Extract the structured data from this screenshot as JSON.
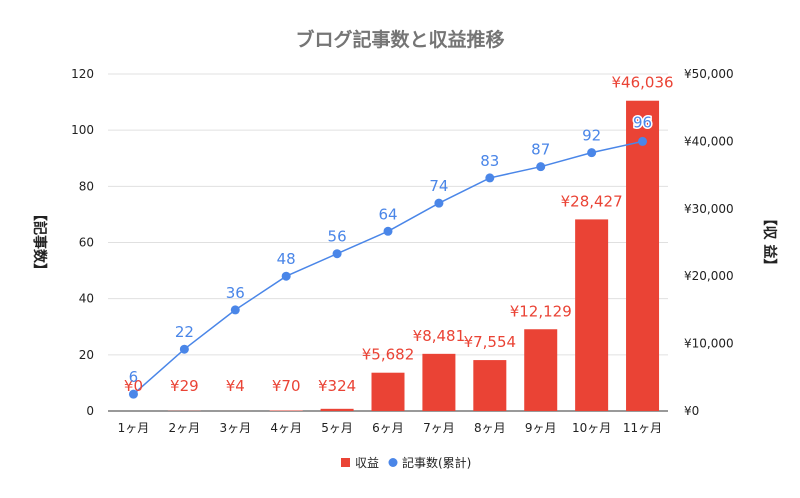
{
  "chart_data": {
    "type": "bar",
    "title": "ブログ記事数と収益推移",
    "ylabel_left": "【記事数】",
    "ylabel_right": "【収 益】",
    "categories": [
      "1ヶ月",
      "2ヶ月",
      "3ヶ月",
      "4ヶ月",
      "5ヶ月",
      "6ヶ月",
      "7ヶ月",
      "8ヶ月",
      "9ヶ月",
      "10ヶ月",
      "11ヶ月"
    ],
    "series": [
      {
        "name": "収益",
        "type": "bar",
        "axis": "right",
        "color": "#ea4335",
        "values": [
          0,
          29,
          4,
          70,
          324,
          5682,
          8481,
          7554,
          12129,
          28427,
          46036
        ],
        "labels": [
          "¥0",
          "¥29",
          "¥4",
          "¥70",
          "¥324",
          "¥5,682",
          "¥8,481",
          "¥7,554",
          "¥12,129",
          "¥28,427",
          "¥46,036"
        ]
      },
      {
        "name": "記事数(累計)",
        "type": "line",
        "axis": "left",
        "color": "#4a86e8",
        "values": [
          6,
          22,
          36,
          48,
          56,
          64,
          74,
          83,
          87,
          92,
          96
        ],
        "labels": [
          "6",
          "22",
          "36",
          "48",
          "56",
          "64",
          "74",
          "83",
          "87",
          "92",
          "96"
        ]
      }
    ],
    "y_left": {
      "ylim": [
        0,
        120
      ],
      "ticks": [
        0,
        20,
        40,
        60,
        80,
        100,
        120
      ],
      "tick_labels": [
        "0",
        "20",
        "40",
        "60",
        "80",
        "100",
        "120"
      ]
    },
    "y_right": {
      "ylim": [
        0,
        50000
      ],
      "ticks": [
        0,
        10000,
        20000,
        30000,
        40000,
        50000
      ],
      "tick_labels": [
        "¥0",
        "¥10,000",
        "¥20,000",
        "¥30,000",
        "¥40,000",
        "¥50,000"
      ]
    },
    "grid": true,
    "legend_position": "bottom"
  }
}
